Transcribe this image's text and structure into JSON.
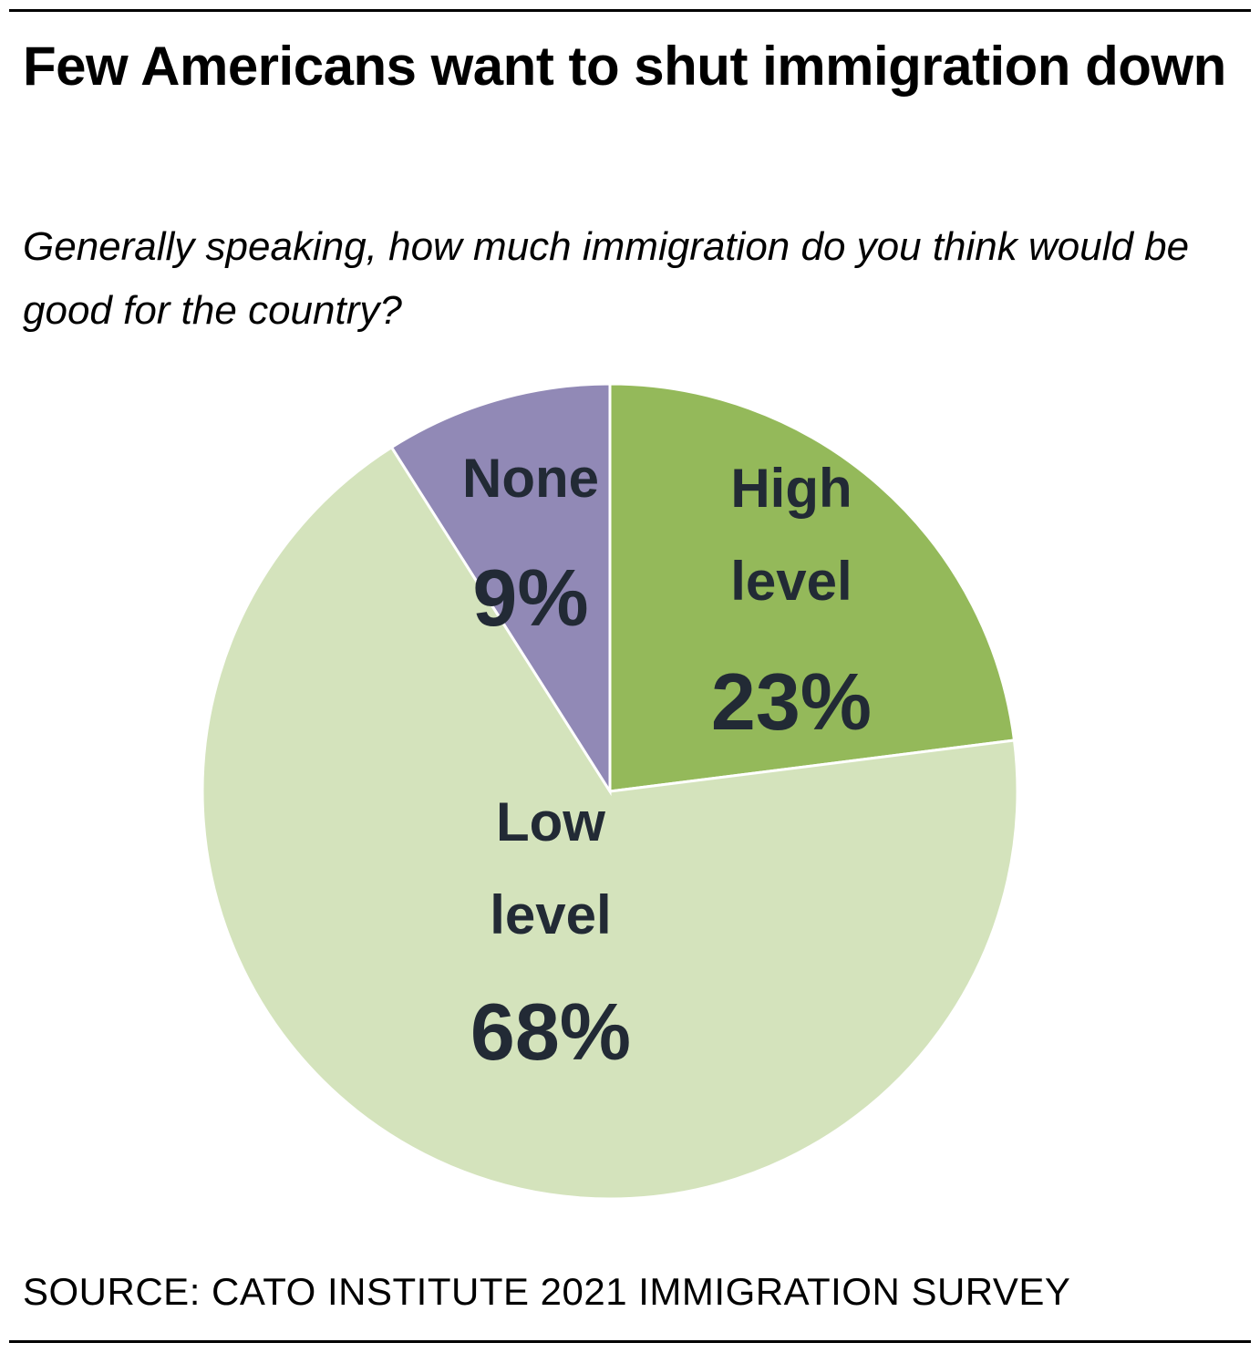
{
  "chart_data": {
    "type": "pie",
    "title": "Few Americans want to shut immigration down",
    "subtitle": "Generally speaking, how much immigration do you think would be good for the country?",
    "source": "SOURCE: CATO INSTITUTE 2021 IMMIGRATION SURVEY",
    "start_angle_deg": 0,
    "direction": "clockwise",
    "slices": [
      {
        "key": "high",
        "label_lines": [
          "High",
          "level"
        ],
        "value": 23,
        "value_label": "23%",
        "color": "#94b95a"
      },
      {
        "key": "low",
        "label_lines": [
          "Low",
          "level"
        ],
        "value": 68,
        "value_label": "68%",
        "color": "#d4e3bc"
      },
      {
        "key": "none",
        "label_lines": [
          "None"
        ],
        "value": 9,
        "value_label": "9%",
        "color": "#9189b6"
      }
    ]
  },
  "colors": {
    "label_text": "#222a35",
    "rule": "#000000"
  }
}
